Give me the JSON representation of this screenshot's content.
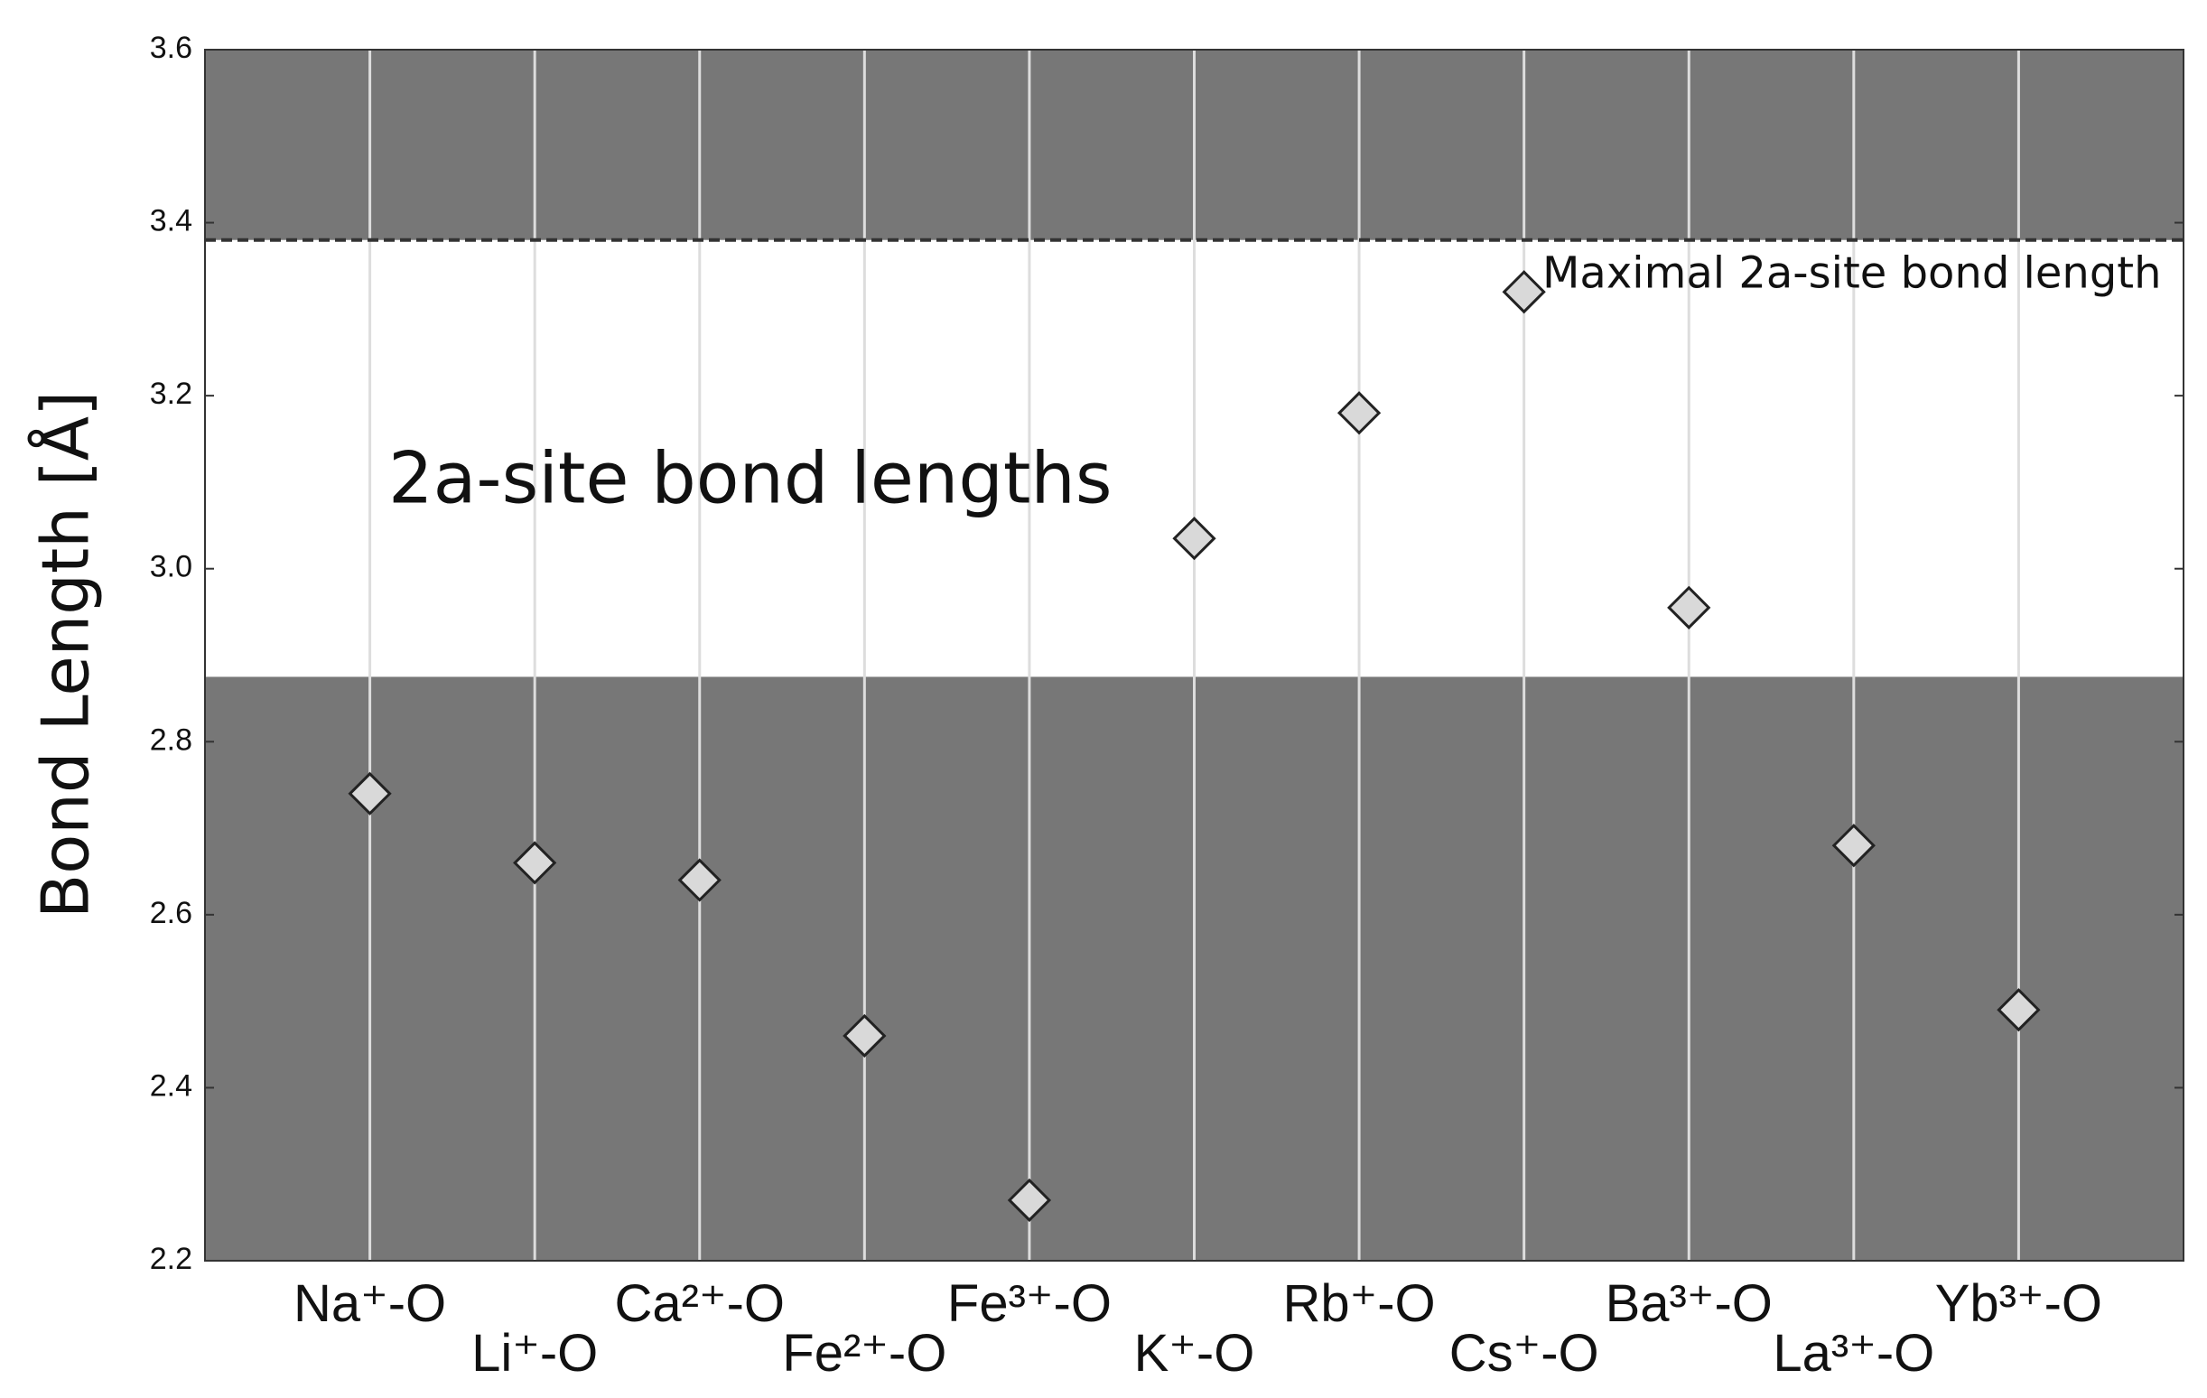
{
  "chart_data": {
    "type": "scatter",
    "ylabel": "Bond Length [Å]",
    "categories": [
      "Na⁺-O",
      "Li⁺-O",
      "Ca²⁺-O",
      "Fe²⁺-O",
      "Fe³⁺-O",
      "K⁺-O",
      "Rb⁺-O",
      "Cs⁺-O",
      "Ba³⁺-O",
      "La³⁺-O",
      "Yb³⁺-O"
    ],
    "values": [
      2.74,
      2.66,
      2.64,
      2.46,
      2.27,
      3.035,
      3.18,
      3.32,
      2.955,
      2.68,
      2.49
    ],
    "color": "#d9d9d9",
    "ylim": [
      2.2,
      3.6
    ],
    "yticks": [
      2.2,
      2.4,
      2.6,
      2.8,
      {
        "value": 3,
        "label": "3.0"
      },
      3.2,
      3.4,
      3.6
    ],
    "highlight": {
      "range": [
        2.875,
        3.38
      ],
      "label": "2a-site bond lengths"
    },
    "reference_line": {
      "value": 3.38,
      "label": "Maximal 2a-site bond length"
    },
    "grid": true
  }
}
